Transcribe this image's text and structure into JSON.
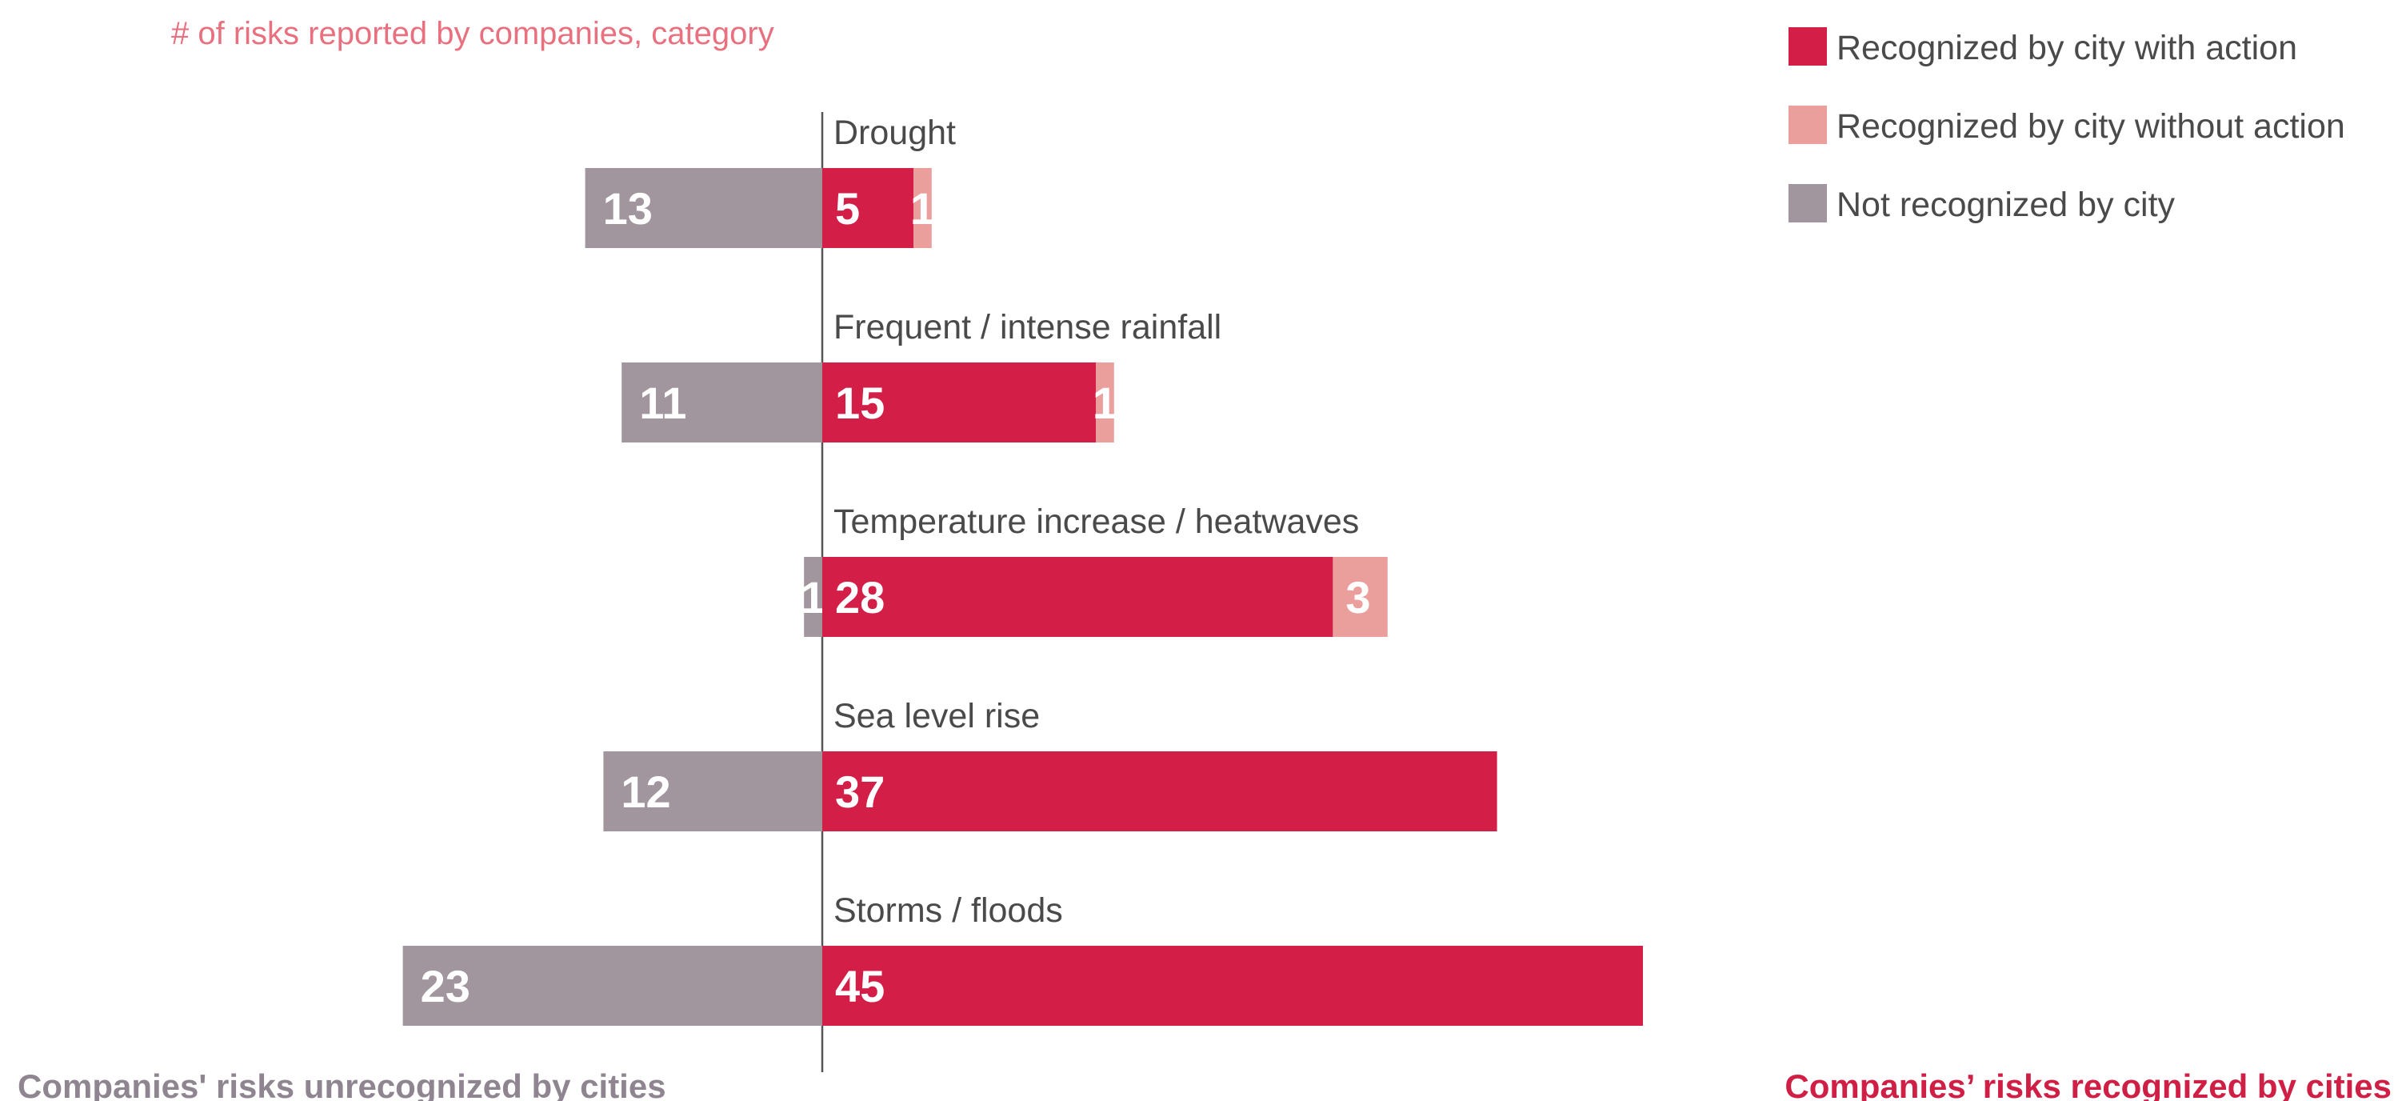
{
  "colors": {
    "with_action": "#d31f47",
    "without_action": "#ea9f9d",
    "not_recognized": "#a1959e",
    "axis": "#555555",
    "subtitle": "#e8707f",
    "left_footer": "#8f8590",
    "right_footer": "#cf1f45"
  },
  "chart_data": {
    "type": "bar",
    "orientation": "horizontal-diverging",
    "subtitle": "# of risks reported by companies, category",
    "categories": [
      "Drought",
      "Frequent / intense rainfall",
      "Temperature increase / heatwaves",
      "Sea level rise",
      "Storms / floods"
    ],
    "series": [
      {
        "name": "Recognized by city with action",
        "key": "with_action",
        "side": "right",
        "values": [
          5,
          15,
          28,
          37,
          45
        ]
      },
      {
        "name": "Recognized by city without action",
        "key": "without_action",
        "side": "right",
        "values": [
          1,
          1,
          3,
          0,
          0
        ]
      },
      {
        "name": "Not recognized by city",
        "key": "not_recognized",
        "side": "left",
        "values": [
          13,
          11,
          1,
          12,
          23
        ]
      }
    ],
    "xlim": [
      -23,
      45
    ],
    "legend_position": "top-right",
    "left_footer": "Companies' risks unrecognized by cities",
    "right_footer": "Companies’ risks recognized by cities",
    "grid": false
  }
}
